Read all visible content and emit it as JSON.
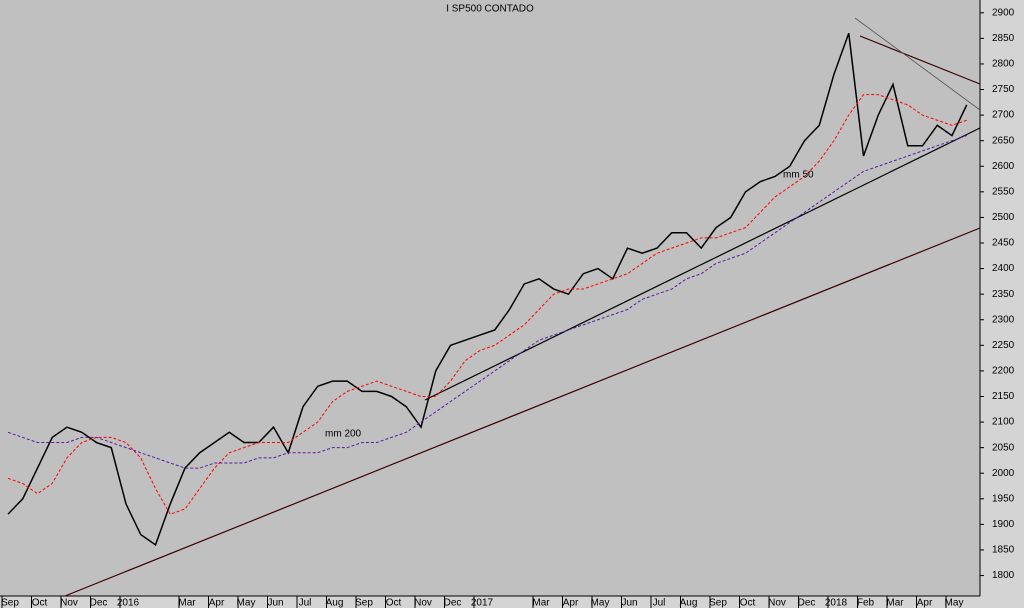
{
  "chart_data": {
    "type": "line",
    "title": "I SP500 CONTADO",
    "categories": [
      "Sep",
      null,
      "Oct",
      null,
      "Nov",
      null,
      "Dec",
      null,
      "2016",
      null,
      null,
      null,
      "Mar",
      null,
      "Apr",
      null,
      "May",
      null,
      "Jun",
      null,
      "Jul",
      null,
      "Aug",
      null,
      "Sep",
      null,
      "Oct",
      null,
      "Nov",
      null,
      "Dec",
      null,
      "2017",
      null,
      null,
      null,
      "Mar",
      null,
      "Apr",
      null,
      "May",
      null,
      "Jun",
      null,
      "Jul",
      null,
      "Aug",
      null,
      "Sep",
      null,
      "Oct",
      null,
      "Nov",
      null,
      "Dec",
      null,
      "2018",
      null,
      "Feb",
      null,
      "Mar",
      null,
      "Apr",
      null,
      "May",
      null
    ],
    "series": [
      {
        "name": "I SP500 CONTADO",
        "color": "#000000",
        "values": [
          1920,
          1950,
          2010,
          2070,
          2090,
          2080,
          2060,
          2050,
          1940,
          1880,
          1860,
          1940,
          2010,
          2040,
          2060,
          2080,
          2060,
          2060,
          2090,
          2040,
          2130,
          2170,
          2180,
          2180,
          2160,
          2160,
          2150,
          2130,
          2090,
          2200,
          2250,
          2260,
          2270,
          2280,
          2320,
          2370,
          2380,
          2360,
          2350,
          2390,
          2400,
          2380,
          2440,
          2430,
          2440,
          2470,
          2470,
          2440,
          2480,
          2500,
          2550,
          2570,
          2580,
          2600,
          2650,
          2680,
          2780,
          2860,
          2620,
          2700,
          2760,
          2640,
          2640,
          2680,
          2660,
          2720
        ]
      },
      {
        "name": "mm 50",
        "color": "#ff0000",
        "values": [
          1990,
          1980,
          1960,
          1980,
          2030,
          2060,
          2070,
          2070,
          2060,
          2030,
          1970,
          1920,
          1930,
          1970,
          2010,
          2040,
          2050,
          2060,
          2060,
          2060,
          2080,
          2100,
          2140,
          2160,
          2170,
          2180,
          2170,
          2160,
          2150,
          2150,
          2180,
          2220,
          2240,
          2250,
          2270,
          2290,
          2320,
          2350,
          2360,
          2360,
          2370,
          2380,
          2390,
          2410,
          2430,
          2440,
          2450,
          2460,
          2460,
          2470,
          2480,
          2510,
          2540,
          2560,
          2580,
          2610,
          2650,
          2700,
          2740,
          2740,
          2730,
          2720,
          2700,
          2690,
          2680,
          2690
        ]
      },
      {
        "name": "mm 200",
        "color": "#5a1aa0",
        "values": [
          2080,
          2070,
          2060,
          2060,
          2060,
          2070,
          2070,
          2060,
          2050,
          2040,
          2030,
          2020,
          2010,
          2010,
          2020,
          2020,
          2020,
          2030,
          2030,
          2040,
          2040,
          2040,
          2050,
          2050,
          2060,
          2060,
          2070,
          2080,
          2100,
          2120,
          2140,
          2160,
          2180,
          2200,
          2220,
          2240,
          2260,
          2270,
          2280,
          2290,
          2300,
          2310,
          2320,
          2340,
          2350,
          2360,
          2380,
          2390,
          2410,
          2420,
          2430,
          2450,
          2470,
          2490,
          2510,
          2530,
          2550,
          2570,
          2590,
          2600,
          2610,
          2620,
          2630,
          2640,
          2650,
          2660
        ]
      }
    ],
    "ylim": [
      1760,
      2925
    ],
    "yticks": [
      1800,
      1850,
      1900,
      1950,
      2000,
      2050,
      2100,
      2150,
      2200,
      2250,
      2300,
      2350,
      2400,
      2450,
      2500,
      2550,
      2600,
      2650,
      2700,
      2750,
      2800,
      2850,
      2900
    ]
  }
}
